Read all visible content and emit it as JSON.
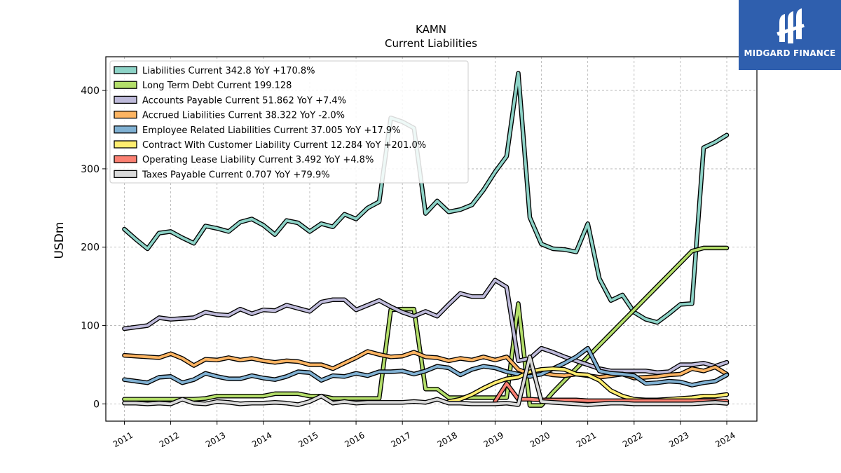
{
  "brand": {
    "name": "MIDGARD FINANCE",
    "logo_icon": "midgard-logo-icon"
  },
  "chart_data": {
    "type": "line",
    "title": "KAMN",
    "subtitle": "Current  Liabilities",
    "ylabel": "USDm",
    "xlim": [
      2010.6,
      2024.65
    ],
    "ylim": [
      -22,
      443
    ],
    "yticks": [
      0,
      100,
      200,
      300,
      400
    ],
    "xticks": [
      2011,
      2012,
      2013,
      2014,
      2015,
      2016,
      2017,
      2018,
      2019,
      2020,
      2021,
      2022,
      2023,
      2024
    ],
    "grid": true,
    "legend_position": "top-left",
    "x": [
      2011.0,
      2011.25,
      2011.5,
      2011.75,
      2012.0,
      2012.25,
      2012.5,
      2012.75,
      2013.0,
      2013.25,
      2013.5,
      2013.75,
      2014.0,
      2014.25,
      2014.5,
      2014.75,
      2015.0,
      2015.25,
      2015.5,
      2015.75,
      2016.0,
      2016.25,
      2016.5,
      2016.75,
      2017.0,
      2017.25,
      2017.5,
      2017.75,
      2018.0,
      2018.25,
      2018.5,
      2018.75,
      2019.0,
      2019.25,
      2019.5,
      2019.75,
      2020.0,
      2020.25,
      2020.5,
      2020.75,
      2021.0,
      2021.25,
      2021.5,
      2021.75,
      2022.0,
      2022.25,
      2022.5,
      2022.75,
      2023.0,
      2023.25,
      2023.5,
      2023.75,
      2024.0
    ],
    "series": [
      {
        "name": "Liabilities Current",
        "legend": "Liabilities Current  342.8 YoY +170.8%",
        "color": "#8dd3c7",
        "values": [
          223,
          210,
          198,
          218,
          220,
          212,
          205,
          227,
          224,
          220,
          232,
          236,
          228,
          216,
          234,
          231,
          220,
          230,
          226,
          242,
          236,
          250,
          258,
          365,
          360,
          352,
          243,
          259,
          245,
          248,
          254,
          273,
          296,
          316,
          422,
          238,
          204,
          198,
          197,
          194,
          230,
          160,
          132,
          139,
          117,
          108,
          104,
          115,
          127,
          128,
          327,
          334,
          343
        ]
      },
      {
        "name": "Long Term Debt Current",
        "legend": "Long Term Debt Current  199.128",
        "color": "#b3de69",
        "values": [
          6,
          6,
          6,
          6,
          6,
          6,
          6,
          7,
          10,
          10,
          10,
          10,
          10,
          13,
          13,
          13,
          10,
          10,
          7,
          7,
          7,
          7,
          7,
          120,
          121,
          121,
          19,
          19,
          8,
          8,
          8,
          8,
          8,
          8,
          128,
          -2,
          -2,
          15,
          30,
          45,
          60,
          75,
          90,
          105,
          120,
          135,
          150,
          165,
          180,
          195,
          199,
          199,
          199
        ]
      },
      {
        "name": "Accounts Payable Current",
        "legend": "Accounts Payable Current  51.862 YoY +7.4%",
        "color": "#bebada",
        "values": [
          96,
          98,
          100,
          110,
          108,
          109,
          110,
          117,
          114,
          113,
          121,
          115,
          120,
          119,
          126,
          122,
          118,
          130,
          133,
          133,
          120,
          126,
          132,
          124,
          117,
          112,
          118,
          112,
          127,
          141,
          137,
          137,
          158,
          149,
          55,
          58,
          71,
          66,
          60,
          55,
          50,
          45,
          42,
          42,
          42,
          42,
          40,
          41,
          50,
          50,
          52,
          48,
          53
        ]
      },
      {
        "name": "Accrued Liabilities Current",
        "legend": "Accrued Liabilities Current  38.322 YoY -2.0%",
        "color": "#fdb462",
        "values": [
          62,
          61,
          60,
          59,
          64,
          58,
          49,
          57,
          56,
          59,
          56,
          58,
          55,
          53,
          55,
          54,
          50,
          50,
          45,
          52,
          59,
          67,
          63,
          60,
          61,
          66,
          60,
          59,
          55,
          58,
          56,
          60,
          56,
          60,
          44,
          38,
          40,
          37,
          36,
          38,
          36,
          34,
          36,
          38,
          33,
          34,
          35,
          37,
          38,
          45,
          42,
          47,
          38
        ]
      },
      {
        "name": "Employee Related Liabilities Current",
        "legend": "Employee Related Liabilities Current  37.005 YoY +17.9%",
        "color": "#80b1d3",
        "values": [
          31,
          29,
          27,
          34,
          35,
          27,
          31,
          39,
          35,
          32,
          32,
          36,
          33,
          31,
          35,
          41,
          40,
          30,
          36,
          35,
          39,
          36,
          41,
          41,
          42,
          38,
          42,
          48,
          46,
          37,
          44,
          48,
          46,
          41,
          38,
          35,
          38,
          45,
          52,
          60,
          71,
          42,
          39,
          38,
          36,
          26,
          27,
          29,
          28,
          24,
          27,
          29,
          37
        ]
      },
      {
        "name": "Contract With Customer Liability Current",
        "legend": "Contract With Customer Liability Current  12.284 YoY +201.0%",
        "color": "#ffed6f",
        "values": [
          null,
          null,
          null,
          null,
          null,
          null,
          null,
          null,
          null,
          null,
          null,
          null,
          null,
          null,
          null,
          null,
          null,
          null,
          null,
          null,
          null,
          null,
          null,
          null,
          null,
          null,
          null,
          null,
          3,
          6,
          12,
          20,
          27,
          32,
          34,
          41,
          44,
          45,
          44,
          38,
          37,
          30,
          17,
          10,
          6,
          5,
          5,
          6,
          7,
          8,
          10,
          10,
          12
        ]
      },
      {
        "name": "Operating Lease Liability Current",
        "legend": "Operating Lease Liability Current  3.492 YoY +4.8%",
        "color": "#fb8072",
        "values": [
          null,
          null,
          null,
          null,
          null,
          null,
          null,
          null,
          null,
          null,
          null,
          null,
          null,
          null,
          null,
          null,
          null,
          null,
          null,
          null,
          null,
          null,
          null,
          null,
          null,
          null,
          null,
          null,
          null,
          null,
          null,
          null,
          3,
          26,
          6,
          6,
          5,
          5,
          5,
          5,
          4,
          4,
          4,
          4,
          4,
          4,
          4,
          4,
          4,
          4,
          4,
          4,
          3.5
        ]
      },
      {
        "name": "Taxes Payable Current",
        "legend": "Taxes Payable Current  0.707 YoY +79.9%",
        "color": "#d9d9d9",
        "values": [
          1,
          1,
          0,
          1,
          0,
          6,
          1,
          0,
          3,
          2,
          0,
          1,
          1,
          2,
          1,
          -1,
          3,
          10,
          1,
          3,
          1,
          2,
          2,
          2,
          2,
          3,
          2,
          6,
          1,
          1,
          0,
          0,
          0,
          1,
          -1,
          60,
          3,
          2,
          1,
          0,
          -1,
          0,
          1,
          1,
          0,
          0,
          0,
          0,
          0,
          0,
          1,
          2,
          0.7
        ]
      }
    ]
  }
}
